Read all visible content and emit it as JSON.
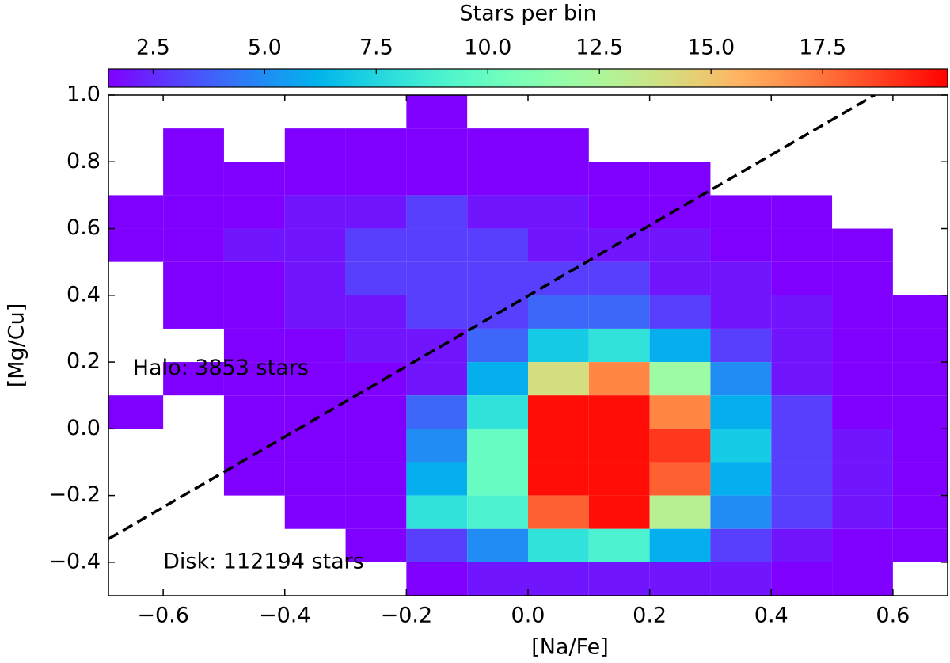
{
  "chart_data": {
    "type": "hist2d",
    "xlabel": "[Na/Fe]",
    "ylabel": "[Mg/Cu]",
    "colorbar_label": "Stars per bin",
    "colormap": "rainbow",
    "clim": [
      1.5,
      20.3
    ],
    "cticks": [
      2.5,
      {
        "value": 5,
        "label": "5.0"
      },
      7.5,
      {
        "value": 10,
        "label": "10.0"
      },
      12.5,
      {
        "value": 15,
        "label": "15.0"
      },
      17.5
    ],
    "xlim": [
      -0.69,
      0.69
    ],
    "ylim": [
      -0.5,
      1.0
    ],
    "xticks": [
      {
        "value": -0.6,
        "label": "−0.6"
      },
      {
        "value": -0.4,
        "label": "−0.4"
      },
      {
        "value": -0.2,
        "label": "−0.2"
      },
      {
        "value": 0,
        "label": "0.0"
      },
      0.2,
      0.4,
      0.6
    ],
    "yticks": [
      {
        "value": -0.4,
        "label": "−0.4"
      },
      {
        "value": -0.2,
        "label": "−0.2"
      },
      {
        "value": 0,
        "label": "0.0"
      },
      0.2,
      0.4,
      0.6,
      0.8,
      {
        "value": 1,
        "label": "1.0"
      }
    ],
    "xbins": [
      -0.7,
      -0.6,
      -0.5,
      -0.4,
      -0.3,
      -0.2,
      -0.1,
      0,
      0.1,
      0.2,
      0.3,
      0.4,
      0.5,
      0.6,
      0.7
    ],
    "ybins": [
      1.0,
      0.9,
      0.8,
      0.7,
      0.6,
      0.5,
      0.4,
      0.3,
      0.2,
      0.1,
      0,
      -0.1,
      -0.2,
      -0.3,
      -0.4,
      -0.5
    ],
    "counts": [
      [
        null,
        null,
        null,
        null,
        null,
        1,
        null,
        null,
        null,
        null,
        null,
        null,
        null,
        null
      ],
      [
        null,
        1,
        null,
        1,
        1,
        1,
        1,
        1,
        null,
        null,
        null,
        null,
        null,
        null
      ],
      [
        null,
        1,
        1,
        1,
        1,
        1,
        1,
        1,
        1,
        1,
        null,
        null,
        null,
        null
      ],
      [
        1,
        1,
        1,
        2,
        2,
        3,
        2,
        2,
        1,
        1,
        1,
        1,
        null,
        null
      ],
      [
        1,
        1,
        2,
        2,
        3,
        3,
        3,
        2,
        2,
        2,
        1,
        1,
        1,
        null
      ],
      [
        null,
        1,
        1,
        2,
        3,
        3,
        3,
        3,
        3,
        2,
        2,
        1,
        1,
        null
      ],
      [
        null,
        1,
        1,
        2,
        2,
        3,
        3,
        4,
        4,
        3,
        2,
        2,
        1,
        1
      ],
      [
        null,
        null,
        1,
        1,
        2,
        2,
        4,
        7,
        8,
        6,
        3,
        2,
        1,
        1
      ],
      [
        null,
        1,
        1,
        1,
        1,
        2,
        6,
        14,
        17,
        12,
        5,
        2,
        1,
        1
      ],
      [
        1,
        null,
        1,
        1,
        1,
        4,
        8,
        20,
        20,
        17,
        6,
        3,
        1,
        1
      ],
      [
        null,
        null,
        1,
        1,
        1,
        5,
        10,
        20,
        20,
        19,
        7,
        3,
        2,
        1
      ],
      [
        null,
        null,
        1,
        1,
        1,
        6,
        10,
        20,
        20,
        18,
        6,
        3,
        2,
        1
      ],
      [
        null,
        null,
        null,
        1,
        1,
        8,
        9,
        18,
        20,
        13,
        5,
        3,
        2,
        1
      ],
      [
        null,
        null,
        null,
        null,
        1,
        3,
        5,
        8,
        9,
        6,
        3,
        2,
        1,
        1
      ],
      [
        null,
        null,
        null,
        null,
        null,
        1,
        2,
        2,
        2,
        2,
        2,
        1,
        1,
        null
      ]
    ],
    "divider": {
      "x": [
        -0.69,
        0.57
      ],
      "y": [
        -0.33,
        1.0
      ],
      "color": "#000000"
    },
    "annotations": [
      {
        "text": "Halo: 3853 stars",
        "x": -0.65,
        "y": 0.18
      },
      {
        "text": "Disk: 112194 stars",
        "x": -0.6,
        "y": -0.4
      }
    ]
  }
}
